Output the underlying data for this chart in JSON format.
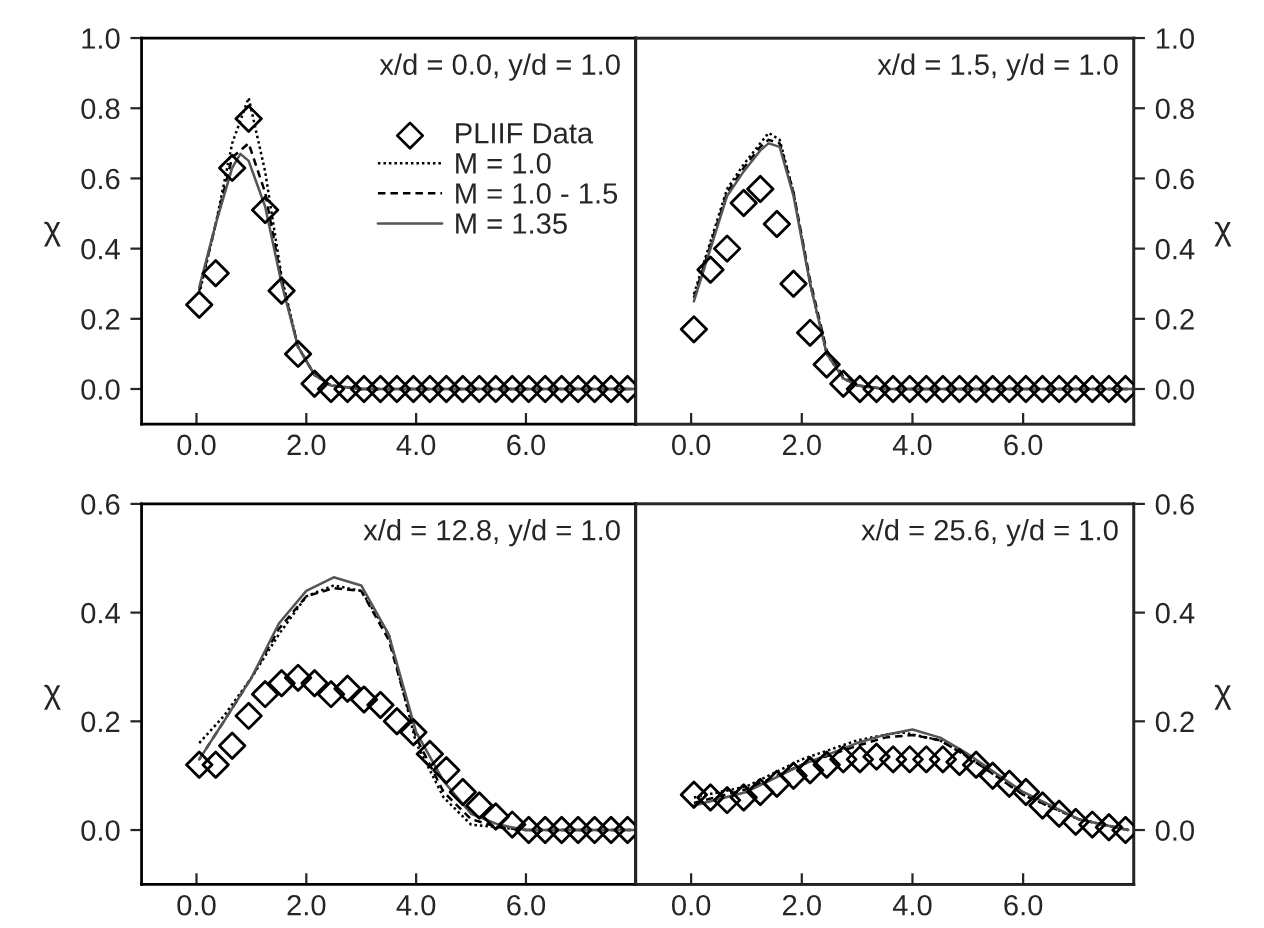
{
  "chart_data": [
    {
      "type": "line",
      "annotations": [
        "x/d = 0.0, y/d = 1.0"
      ],
      "ylabel": "χ",
      "xlim": [
        -1,
        8
      ],
      "ylim": [
        -0.1,
        1.0
      ],
      "xticks": [
        {
          "value": 0,
          "label": "0.0"
        },
        {
          "value": 2,
          "label": "2.0"
        },
        {
          "value": 4,
          "label": "4.0"
        },
        {
          "value": 6,
          "label": "6.0"
        }
      ],
      "yticks": [
        {
          "value": 0,
          "label": "0.0"
        },
        {
          "value": 0.2,
          "label": "0.2"
        },
        {
          "value": 0.4,
          "label": "0.4"
        },
        {
          "value": 0.6,
          "label": "0.6"
        },
        {
          "value": 0.8,
          "label": "0.8"
        },
        {
          "value": 1.0,
          "label": "1.0"
        }
      ],
      "legend": "right",
      "grid": false,
      "series": [
        {
          "name": "PLIIF Data",
          "type": "scatter",
          "marker": "diamond",
          "color": "#000000",
          "x": [
            0.05,
            0.35,
            0.65,
            0.95,
            1.25,
            1.55,
            1.85,
            2.15,
            2.45,
            2.75,
            3.05,
            3.35,
            3.65,
            3.95,
            4.25,
            4.55,
            4.85,
            5.15,
            5.45,
            5.75,
            6.05,
            6.35,
            6.65,
            6.95,
            7.25,
            7.55,
            7.85
          ],
          "values": [
            0.24,
            0.33,
            0.63,
            0.77,
            0.51,
            0.28,
            0.1,
            0.015,
            0,
            0,
            0,
            0,
            0,
            0,
            0,
            0,
            0,
            0,
            0,
            0,
            0,
            0,
            0,
            0,
            0,
            0,
            0
          ]
        },
        {
          "name": "M = 1.0",
          "type": "line",
          "line_style": "dotted",
          "color": "#000000",
          "x": [
            0.05,
            0.35,
            0.65,
            0.95,
            1.25,
            1.55,
            1.85,
            2.15,
            2.45,
            3.0,
            8.0
          ],
          "values": [
            0.27,
            0.47,
            0.7,
            0.83,
            0.62,
            0.32,
            0.12,
            0.04,
            0.01,
            0,
            0
          ]
        },
        {
          "name": "M = 1.0 - 1.5",
          "type": "line",
          "line_style": "dashed",
          "color": "#000000",
          "x": [
            0.05,
            0.35,
            0.65,
            0.95,
            1.25,
            1.55,
            1.85,
            2.15,
            2.45,
            3.0,
            8.0
          ],
          "values": [
            0.28,
            0.47,
            0.66,
            0.7,
            0.56,
            0.31,
            0.12,
            0.04,
            0.01,
            0,
            0
          ]
        },
        {
          "name": "M = 1.35",
          "type": "line",
          "line_style": "solid",
          "color": "#555555",
          "x": [
            0.05,
            0.35,
            0.65,
            0.8,
            0.95,
            1.25,
            1.55,
            1.85,
            2.15,
            2.45,
            3.0,
            8.0
          ],
          "values": [
            0.29,
            0.47,
            0.63,
            0.67,
            0.65,
            0.52,
            0.3,
            0.12,
            0.04,
            0.01,
            0,
            0
          ]
        }
      ]
    },
    {
      "type": "line",
      "annotations": [
        "x/d = 1.5, y/d = 1.0"
      ],
      "y2label": "χ",
      "xlim": [
        -1,
        8
      ],
      "y2lim": [
        -0.1,
        1.0
      ],
      "xticks": [
        {
          "value": 0,
          "label": "0.0"
        },
        {
          "value": 2,
          "label": "2.0"
        },
        {
          "value": 4,
          "label": "4.0"
        },
        {
          "value": 6,
          "label": "6.0"
        }
      ],
      "y2ticks": [
        {
          "value": 0,
          "label": "0.0"
        },
        {
          "value": 0.2,
          "label": "0.2"
        },
        {
          "value": 0.4,
          "label": "0.4"
        },
        {
          "value": 0.6,
          "label": "0.6"
        },
        {
          "value": 0.8,
          "label": "0.8"
        },
        {
          "value": 1.0,
          "label": "1.0"
        }
      ],
      "grid": false,
      "series": [
        {
          "type": "scatter",
          "axis": "y2",
          "marker": "diamond",
          "color": "#000000",
          "x": [
            0.05,
            0.35,
            0.65,
            0.95,
            1.25,
            1.55,
            1.85,
            2.15,
            2.45,
            2.75,
            3.05,
            3.35,
            3.65,
            3.95,
            4.25,
            4.55,
            4.85,
            5.15,
            5.45,
            5.75,
            6.05,
            6.35,
            6.65,
            6.95,
            7.25,
            7.55,
            7.85
          ],
          "values": [
            0.17,
            0.34,
            0.4,
            0.53,
            0.57,
            0.47,
            0.3,
            0.16,
            0.07,
            0.015,
            0,
            0,
            0,
            0,
            0,
            0,
            0,
            0,
            0,
            0,
            0,
            0,
            0,
            0,
            0,
            0,
            0
          ]
        },
        {
          "type": "line",
          "axis": "y2",
          "line_style": "dotted",
          "color": "#000000",
          "x": [
            0.05,
            0.35,
            0.65,
            0.95,
            1.25,
            1.4,
            1.6,
            1.85,
            2.15,
            2.45,
            2.75,
            3.0,
            3.5,
            8.0
          ],
          "values": [
            0.27,
            0.42,
            0.57,
            0.64,
            0.7,
            0.73,
            0.71,
            0.56,
            0.3,
            0.1,
            0.03,
            0.01,
            0,
            0
          ]
        },
        {
          "type": "line",
          "axis": "y2",
          "line_style": "dashed",
          "color": "#000000",
          "x": [
            0.05,
            0.35,
            0.65,
            0.95,
            1.25,
            1.4,
            1.6,
            1.85,
            2.15,
            2.45,
            2.75,
            3.0,
            3.5,
            8.0
          ],
          "values": [
            0.26,
            0.41,
            0.56,
            0.63,
            0.69,
            0.71,
            0.7,
            0.56,
            0.31,
            0.11,
            0.035,
            0.01,
            0,
            0
          ]
        },
        {
          "type": "line",
          "axis": "y2",
          "line_style": "solid",
          "color": "#555555",
          "x": [
            0.05,
            0.35,
            0.65,
            0.95,
            1.25,
            1.4,
            1.6,
            1.85,
            2.15,
            2.45,
            2.75,
            3.0,
            3.5,
            8.0
          ],
          "values": [
            0.25,
            0.4,
            0.55,
            0.62,
            0.68,
            0.7,
            0.69,
            0.55,
            0.3,
            0.1,
            0.03,
            0.01,
            0,
            0
          ]
        }
      ]
    },
    {
      "type": "line",
      "annotations": [
        "x/d = 12.8, y/d = 1.0"
      ],
      "ylabel": "χ",
      "xlim": [
        -1,
        8
      ],
      "ylim": [
        -0.1,
        0.6
      ],
      "xticks": [
        {
          "value": 0,
          "label": "0.0"
        },
        {
          "value": 2,
          "label": "2.0"
        },
        {
          "value": 4,
          "label": "4.0"
        },
        {
          "value": 6,
          "label": "6.0"
        }
      ],
      "yticks": [
        {
          "value": 0,
          "label": "0.0"
        },
        {
          "value": 0.2,
          "label": "0.2"
        },
        {
          "value": 0.4,
          "label": "0.4"
        },
        {
          "value": 0.6,
          "label": "0.6"
        }
      ],
      "grid": false,
      "series": [
        {
          "type": "scatter",
          "marker": "diamond",
          "color": "#000000",
          "x": [
            0.05,
            0.35,
            0.65,
            0.95,
            1.25,
            1.55,
            1.85,
            2.15,
            2.45,
            2.75,
            3.05,
            3.35,
            3.65,
            3.95,
            4.25,
            4.55,
            4.85,
            5.15,
            5.45,
            5.75,
            6.05,
            6.35,
            6.65,
            6.95,
            7.25,
            7.55,
            7.85
          ],
          "values": [
            0.12,
            0.12,
            0.155,
            0.21,
            0.25,
            0.27,
            0.28,
            0.27,
            0.25,
            0.26,
            0.24,
            0.23,
            0.2,
            0.18,
            0.14,
            0.11,
            0.07,
            0.045,
            0.025,
            0.01,
            0,
            0,
            0,
            0,
            0,
            0,
            0
          ]
        },
        {
          "type": "line",
          "line_style": "dotted",
          "color": "#000000",
          "x": [
            0.05,
            0.5,
            1.0,
            1.5,
            2.0,
            2.5,
            3.0,
            3.5,
            4.0,
            4.5,
            5.0,
            5.5,
            6.0,
            8.0
          ],
          "values": [
            0.16,
            0.21,
            0.28,
            0.36,
            0.43,
            0.45,
            0.44,
            0.36,
            0.16,
            0.06,
            0.01,
            0.005,
            0,
            0
          ]
        },
        {
          "type": "line",
          "line_style": "dashed",
          "color": "#000000",
          "x": [
            0.05,
            0.5,
            1.0,
            1.5,
            2.0,
            2.5,
            3.0,
            3.5,
            4.0,
            4.5,
            5.0,
            5.5,
            6.0,
            8.0
          ],
          "values": [
            0.13,
            0.2,
            0.28,
            0.37,
            0.43,
            0.445,
            0.44,
            0.35,
            0.17,
            0.07,
            0.02,
            0.005,
            0,
            0
          ]
        },
        {
          "type": "line",
          "line_style": "solid",
          "color": "#555555",
          "x": [
            0.05,
            0.5,
            1.0,
            1.5,
            2.0,
            2.5,
            3.0,
            3.5,
            4.0,
            4.5,
            5.0,
            5.5,
            6.0,
            8.0
          ],
          "values": [
            0.13,
            0.2,
            0.28,
            0.38,
            0.44,
            0.465,
            0.45,
            0.36,
            0.18,
            0.09,
            0.03,
            0.01,
            0,
            0
          ]
        }
      ]
    },
    {
      "type": "line",
      "annotations": [
        "x/d = 25.6, y/d = 1.0"
      ],
      "y2label": "χ",
      "xlim": [
        -1,
        8
      ],
      "y2lim": [
        -0.1,
        0.6
      ],
      "xticks": [
        {
          "value": 0,
          "label": "0.0"
        },
        {
          "value": 2,
          "label": "2.0"
        },
        {
          "value": 4,
          "label": "4.0"
        },
        {
          "value": 6,
          "label": "6.0"
        }
      ],
      "y2ticks": [
        {
          "value": 0,
          "label": "0.0"
        },
        {
          "value": 0.2,
          "label": "0.2"
        },
        {
          "value": 0.4,
          "label": "0.4"
        },
        {
          "value": 0.6,
          "label": "0.6"
        }
      ],
      "grid": false,
      "series": [
        {
          "type": "scatter",
          "axis": "y2",
          "marker": "diamond",
          "color": "#000000",
          "x": [
            0.05,
            0.35,
            0.65,
            0.95,
            1.25,
            1.55,
            1.85,
            2.15,
            2.45,
            2.75,
            3.05,
            3.35,
            3.65,
            3.95,
            4.25,
            4.55,
            4.85,
            5.15,
            5.45,
            5.75,
            6.05,
            6.35,
            6.65,
            6.95,
            7.25,
            7.55,
            7.85
          ],
          "values": [
            0.065,
            0.06,
            0.055,
            0.06,
            0.07,
            0.085,
            0.1,
            0.11,
            0.12,
            0.13,
            0.13,
            0.135,
            0.13,
            0.13,
            0.13,
            0.13,
            0.125,
            0.12,
            0.1,
            0.085,
            0.07,
            0.045,
            0.03,
            0.015,
            0.01,
            0.005,
            0
          ]
        },
        {
          "type": "line",
          "axis": "y2",
          "line_style": "dotted",
          "color": "#000000",
          "x": [
            0.05,
            1.0,
            2.0,
            3.0,
            3.5,
            3.8,
            4.5,
            5.0,
            6.0,
            7.0,
            7.9
          ],
          "values": [
            0.06,
            0.08,
            0.13,
            0.165,
            0.175,
            0.18,
            0.165,
            0.135,
            0.065,
            0.02,
            0
          ]
        },
        {
          "type": "line",
          "axis": "y2",
          "line_style": "dashed",
          "color": "#000000",
          "x": [
            0.05,
            1.0,
            2.0,
            3.0,
            3.5,
            4.0,
            4.5,
            5.0,
            6.0,
            7.0,
            7.9
          ],
          "values": [
            0.05,
            0.075,
            0.12,
            0.155,
            0.17,
            0.175,
            0.165,
            0.135,
            0.065,
            0.02,
            0
          ]
        },
        {
          "type": "line",
          "axis": "y2",
          "line_style": "solid",
          "color": "#555555",
          "x": [
            0.05,
            1.0,
            2.0,
            3.0,
            3.5,
            4.0,
            4.5,
            5.0,
            6.0,
            7.0,
            7.9
          ],
          "values": [
            0.045,
            0.07,
            0.12,
            0.16,
            0.175,
            0.185,
            0.17,
            0.14,
            0.07,
            0.02,
            0
          ]
        }
      ]
    }
  ]
}
